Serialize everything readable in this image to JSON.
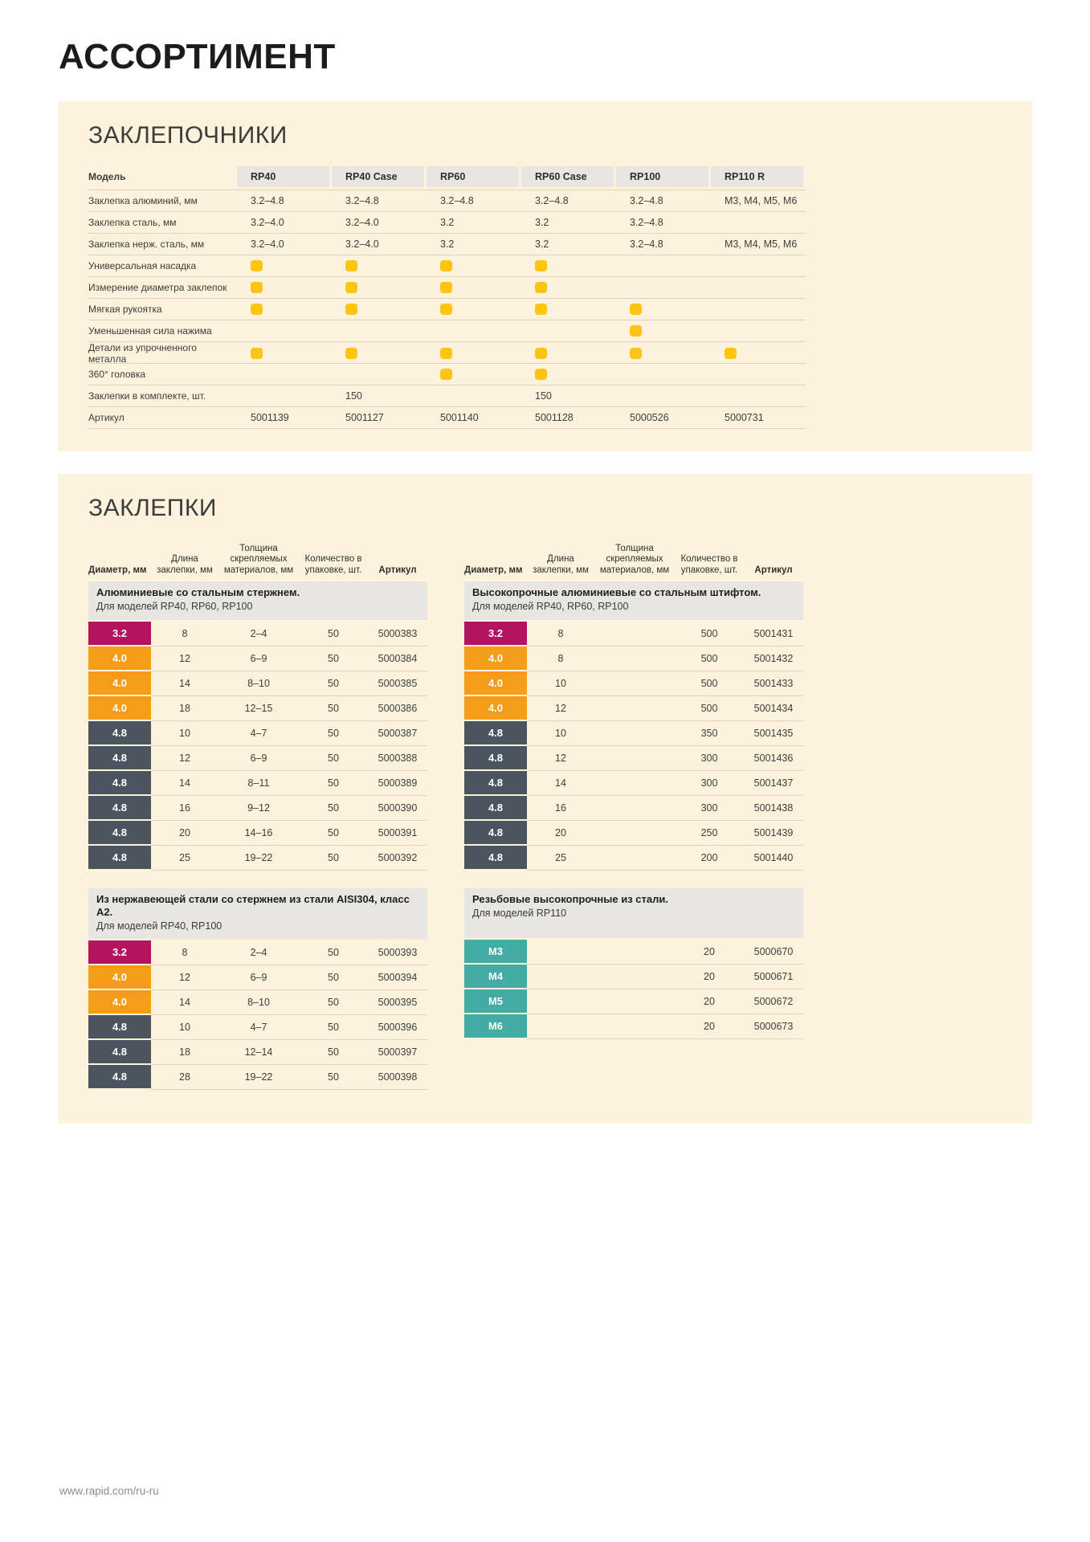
{
  "page": {
    "title": "АССОРТИМЕНТ",
    "footer_link": "www.rapid.com/ru-ru"
  },
  "colors": {
    "panel_bg": "#fdf3dd",
    "header_cell_bg": "#e7e6e3",
    "band_bg": "#e7e6e3",
    "row_line": "#ddd5c1",
    "dot": "#fdc413",
    "diameter_3_2": "#b4135f",
    "diameter_4_0": "#f59d18",
    "diameter_4_8": "#4b555f",
    "diameter_m": "#43aca4"
  },
  "riveters": {
    "section_title": "ЗАКЛЕПОЧНИКИ",
    "model_label": "Модель",
    "models": [
      "RP40",
      "RP40 Case",
      "RP60",
      "RP60 Case",
      "RP100",
      "RP110 R"
    ],
    "rows": [
      {
        "label": "Заклепка алюминий, мм",
        "type": "text",
        "values": [
          "3.2–4.8",
          "3.2–4.8",
          "3.2–4.8",
          "3.2–4.8",
          "3.2–4.8",
          "M3, M4, M5, M6"
        ]
      },
      {
        "label": "Заклепка сталь, мм",
        "type": "text",
        "values": [
          "3.2–4.0",
          "3.2–4.0",
          "3.2",
          "3.2",
          "3.2–4.8",
          ""
        ]
      },
      {
        "label": "Заклепка нерж. сталь, мм",
        "type": "text",
        "values": [
          "3.2–4.0",
          "3.2–4.0",
          "3.2",
          "3.2",
          "3.2–4.8",
          "M3, M4, M5, M6"
        ]
      },
      {
        "label": "Универсальная насадка",
        "type": "dot",
        "values": [
          true,
          true,
          true,
          true,
          false,
          false
        ]
      },
      {
        "label": "Измерение диаметра заклепок",
        "type": "dot",
        "values": [
          true,
          true,
          true,
          true,
          false,
          false
        ]
      },
      {
        "label": "Мягкая рукоятка",
        "type": "dot",
        "values": [
          true,
          true,
          true,
          true,
          true,
          false
        ]
      },
      {
        "label": "Уменьшенная сила нажима",
        "type": "dot",
        "values": [
          false,
          false,
          false,
          false,
          true,
          false
        ]
      },
      {
        "label": "Детали из упрочненного металла",
        "type": "dot",
        "values": [
          true,
          true,
          true,
          true,
          true,
          true
        ]
      },
      {
        "label": "360° головка",
        "type": "dot",
        "values": [
          false,
          false,
          true,
          true,
          false,
          false
        ]
      },
      {
        "label": "Заклепки в комплекте, шт.",
        "type": "text",
        "values": [
          "",
          "150",
          "",
          "150",
          "",
          ""
        ]
      },
      {
        "label": "Артикул",
        "type": "text",
        "values": [
          "5001139",
          "5001127",
          "5001140",
          "5001128",
          "5000526",
          "5000731"
        ]
      }
    ]
  },
  "rivets": {
    "section_title": "ЗАКЛЕПКИ",
    "column_headers": [
      "Диаметр, мм",
      "Длина заклепки, мм",
      "Толщина скрепляемых материалов, мм",
      "Количество в упаковке, шт.",
      "Артикул"
    ],
    "tables": [
      {
        "title": "Алюминиевые со стальным стержнем.",
        "subtitle": "Для моделей RP40, RP60, RP100",
        "rows": [
          [
            "3.2",
            "8",
            "2–4",
            "50",
            "5000383"
          ],
          [
            "4.0",
            "12",
            "6–9",
            "50",
            "5000384"
          ],
          [
            "4.0",
            "14",
            "8–10",
            "50",
            "5000385"
          ],
          [
            "4.0",
            "18",
            "12–15",
            "50",
            "5000386"
          ],
          [
            "4.8",
            "10",
            "4–7",
            "50",
            "5000387"
          ],
          [
            "4.8",
            "12",
            "6–9",
            "50",
            "5000388"
          ],
          [
            "4.8",
            "14",
            "8–11",
            "50",
            "5000389"
          ],
          [
            "4.8",
            "16",
            "9–12",
            "50",
            "5000390"
          ],
          [
            "4.8",
            "20",
            "14–16",
            "50",
            "5000391"
          ],
          [
            "4.8",
            "25",
            "19–22",
            "50",
            "5000392"
          ]
        ]
      },
      {
        "title": "Высокопрочные алюминиевые со стальным штифтом.",
        "subtitle": "Для моделей RP40, RP60, RP100",
        "rows": [
          [
            "3.2",
            "8",
            "",
            "500",
            "5001431"
          ],
          [
            "4.0",
            "8",
            "",
            "500",
            "5001432"
          ],
          [
            "4.0",
            "10",
            "",
            "500",
            "5001433"
          ],
          [
            "4.0",
            "12",
            "",
            "500",
            "5001434"
          ],
          [
            "4.8",
            "10",
            "",
            "350",
            "5001435"
          ],
          [
            "4.8",
            "12",
            "",
            "300",
            "5001436"
          ],
          [
            "4.8",
            "14",
            "",
            "300",
            "5001437"
          ],
          [
            "4.8",
            "16",
            "",
            "300",
            "5001438"
          ],
          [
            "4.8",
            "20",
            "",
            "250",
            "5001439"
          ],
          [
            "4.8",
            "25",
            "",
            "200",
            "5001440"
          ]
        ]
      },
      {
        "title": "Из нержавеющей стали со стержнем из стали AISI304, класс А2.",
        "subtitle": "Для моделей RP40, RP100",
        "rows": [
          [
            "3.2",
            "8",
            "2–4",
            "50",
            "5000393"
          ],
          [
            "4.0",
            "12",
            "6–9",
            "50",
            "5000394"
          ],
          [
            "4.0",
            "14",
            "8–10",
            "50",
            "5000395"
          ],
          [
            "4.8",
            "10",
            "4–7",
            "50",
            "5000396"
          ],
          [
            "4.8",
            "18",
            "12–14",
            "50",
            "5000397"
          ],
          [
            "4.8",
            "28",
            "19–22",
            "50",
            "5000398"
          ]
        ]
      },
      {
        "title": "Резьбовые высокопрочные из стали.",
        "subtitle": "Для моделей RP110",
        "rows": [
          [
            "M3",
            "",
            "",
            "20",
            "5000670"
          ],
          [
            "M4",
            "",
            "",
            "20",
            "5000671"
          ],
          [
            "M5",
            "",
            "",
            "20",
            "5000672"
          ],
          [
            "M6",
            "",
            "",
            "20",
            "5000673"
          ]
        ]
      }
    ]
  }
}
